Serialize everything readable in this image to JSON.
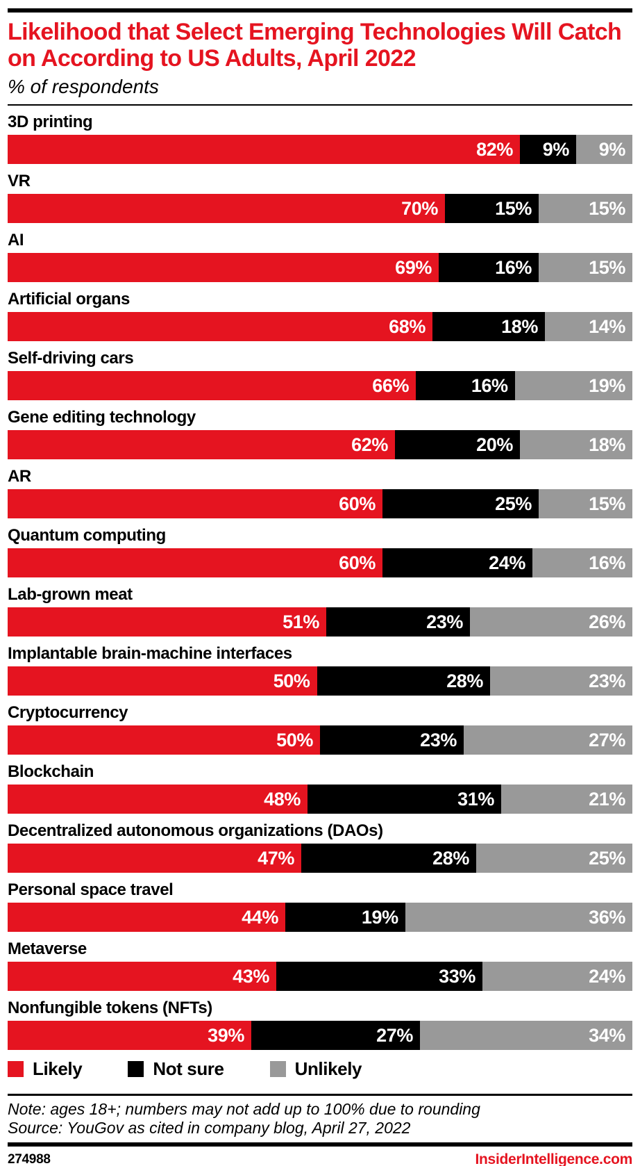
{
  "header": {
    "title": "Likelihood that Select Emerging Technologies Will Catch on According to US Adults, April 2022",
    "subtitle": "% of respondents"
  },
  "colors": {
    "accent_red": "#e51420",
    "black": "#000000",
    "gray": "#999999",
    "bar_value_text": "#ffffff"
  },
  "chart_data": {
    "type": "bar",
    "stacked": true,
    "orientation": "horizontal",
    "value_suffix": "%",
    "legend_position": "bottom",
    "axis": "none (values labeled inside segments, each row spans full width)",
    "categories": [
      "3D printing",
      "VR",
      "AI",
      "Artificial organs",
      "Self-driving cars",
      "Gene editing technology",
      "AR",
      "Quantum computing",
      "Lab-grown meat",
      "Implantable brain-machine interfaces",
      "Cryptocurrency",
      "Blockchain",
      "Decentralized autonomous organizations (DAOs)",
      "Personal space travel",
      "Metaverse",
      "Nonfungible tokens (NFTs)"
    ],
    "series": [
      {
        "name": "Likely",
        "color": "#e51420",
        "values": [
          82,
          70,
          69,
          68,
          66,
          62,
          60,
          60,
          51,
          50,
          50,
          48,
          47,
          44,
          43,
          39
        ]
      },
      {
        "name": "Not sure",
        "color": "#000000",
        "values": [
          9,
          15,
          16,
          18,
          16,
          20,
          25,
          24,
          23,
          28,
          23,
          31,
          28,
          19,
          33,
          27
        ]
      },
      {
        "name": "Unlikely",
        "color": "#999999",
        "values": [
          9,
          15,
          15,
          14,
          19,
          18,
          15,
          16,
          26,
          23,
          27,
          21,
          25,
          36,
          24,
          34
        ]
      }
    ]
  },
  "legend": {
    "items": [
      {
        "label": "Likely",
        "color": "#e51420"
      },
      {
        "label": "Not sure",
        "color": "#000000"
      },
      {
        "label": "Unlikely",
        "color": "#999999"
      }
    ]
  },
  "notes": {
    "note": "Note: ages 18+; numbers may not add up to 100% due to rounding",
    "source": "Source: YouGov as cited in company blog, April 27, 2022"
  },
  "footer": {
    "chart_id": "274988",
    "site": "InsiderIntelligence.com"
  }
}
